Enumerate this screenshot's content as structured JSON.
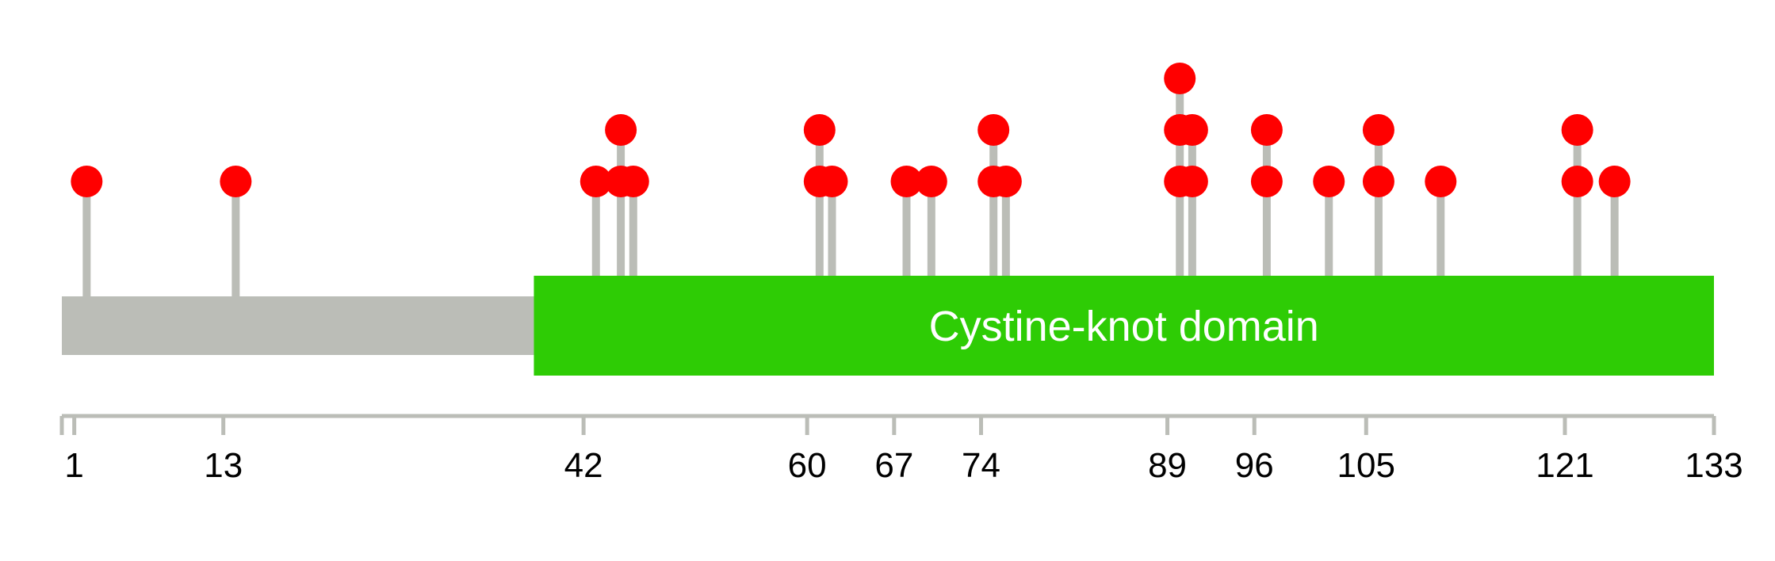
{
  "chart_data": {
    "type": "lollipop",
    "protein_length": 133,
    "axis_ticks": [
      1,
      13,
      42,
      60,
      67,
      74,
      89,
      96,
      105,
      121,
      133
    ],
    "domains": [
      {
        "label": "Cystine-knot domain",
        "start": 38,
        "end": 133,
        "color": "#2ecc05"
      }
    ],
    "mutations": [
      {
        "position": 2,
        "count": 1
      },
      {
        "position": 14,
        "count": 1
      },
      {
        "position": 43,
        "count": 1
      },
      {
        "position": 45,
        "count": 2
      },
      {
        "position": 46,
        "count": 1
      },
      {
        "position": 61,
        "count": 2
      },
      {
        "position": 62,
        "count": 1
      },
      {
        "position": 68,
        "count": 1
      },
      {
        "position": 70,
        "count": 1
      },
      {
        "position": 75,
        "count": 2
      },
      {
        "position": 76,
        "count": 1
      },
      {
        "position": 90,
        "count": 3
      },
      {
        "position": 91,
        "count": 2
      },
      {
        "position": 97,
        "count": 2
      },
      {
        "position": 102,
        "count": 1
      },
      {
        "position": 106,
        "count": 2
      },
      {
        "position": 111,
        "count": 1
      },
      {
        "position": 122,
        "count": 2
      },
      {
        "position": 125,
        "count": 1
      }
    ],
    "colors": {
      "backbone": "#bbbdb7",
      "stem": "#bbbdb7",
      "marker": "#ff0000",
      "axis": "#bbbdb7"
    }
  }
}
